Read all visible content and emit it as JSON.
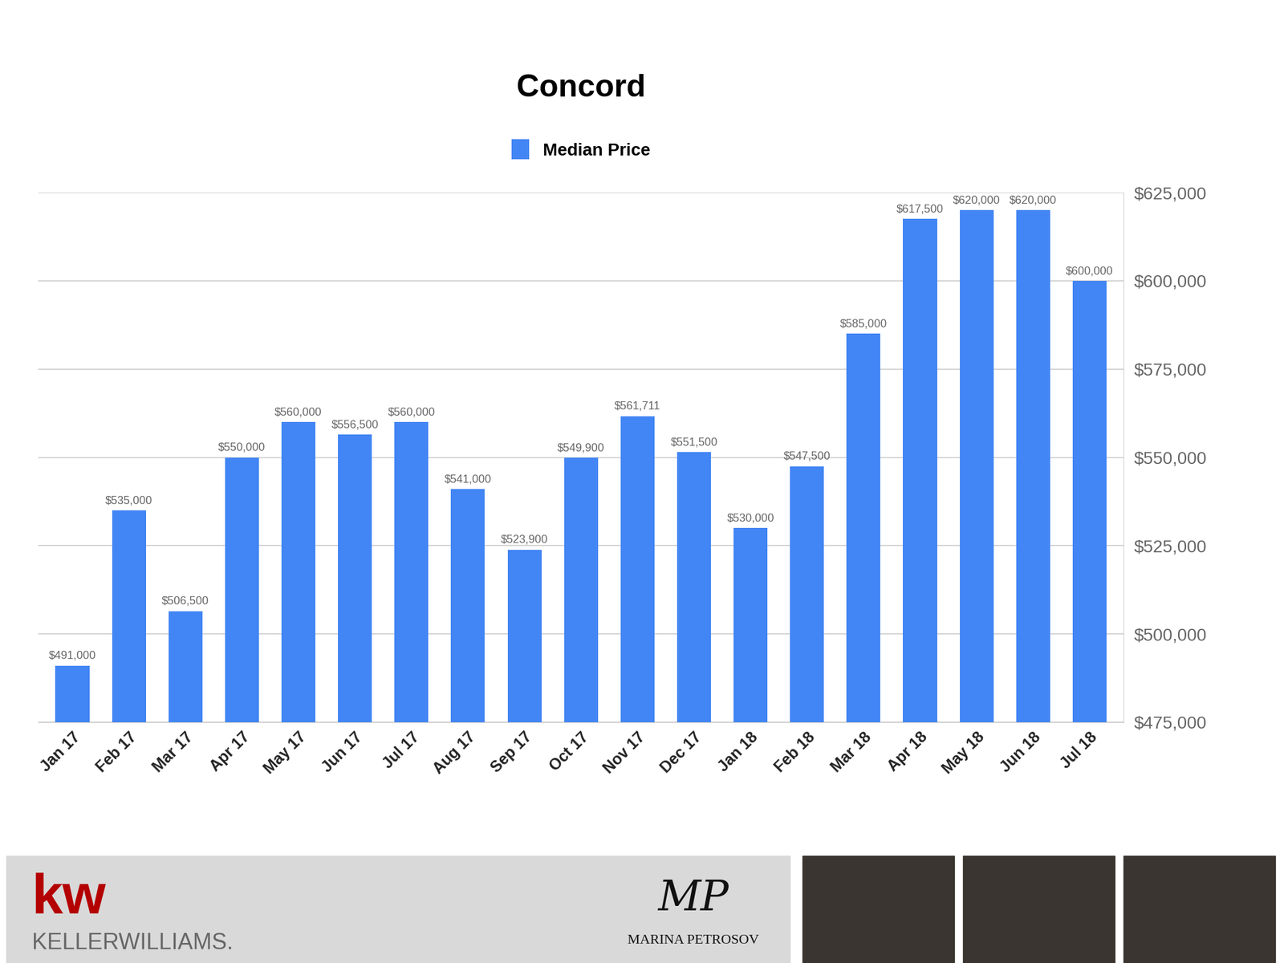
{
  "chart_data": {
    "type": "bar",
    "title": "Concord",
    "categories": [
      "Jan 17",
      "Feb 17",
      "Mar 17",
      "Apr 17",
      "May 17",
      "Jun 17",
      "Jul 17",
      "Aug 17",
      "Sep 17",
      "Oct 17",
      "Nov 17",
      "Dec 17",
      "Jan 18",
      "Feb 18",
      "Mar 18",
      "Apr 18",
      "May 18",
      "Jun 18",
      "Jul 18"
    ],
    "series": [
      {
        "name": "Median Price",
        "color": "#4285f4",
        "values": [
          491000,
          535000,
          506500,
          550000,
          560000,
          556500,
          560000,
          541000,
          523900,
          549900,
          561711,
          551500,
          530000,
          547500,
          585000,
          617500,
          620000,
          620000,
          600000
        ],
        "value_labels": [
          "$491,000",
          "$535,000",
          "$506,500",
          "$550,000",
          "$560,000",
          "$556,500",
          "$560,000",
          "$541,000",
          "$523,900",
          "$549,900",
          "$561,711",
          "$551,500",
          "$530,000",
          "$547,500",
          "$585,000",
          "$617,500",
          "$620,000",
          "$620,000",
          "$600,000"
        ]
      }
    ],
    "ylim": [
      475000,
      625000
    ],
    "yticks": [
      {
        "value": 475000,
        "label": "$475,000"
      },
      {
        "value": 500000,
        "label": "$500,000"
      },
      {
        "value": 525000,
        "label": "$525,000"
      },
      {
        "value": 550000,
        "label": "$550,000"
      },
      {
        "value": 575000,
        "label": "$575,000"
      },
      {
        "value": 600000,
        "label": "$600,000"
      },
      {
        "value": 625000,
        "label": "$625,000"
      }
    ],
    "grid": true,
    "legend": "upper center",
    "data_labels": true
  },
  "footer": {
    "logo": "kw",
    "company": "KELLERWILLIAMS.",
    "monogram": "MP",
    "agent": "MARINA PETROSOV"
  }
}
